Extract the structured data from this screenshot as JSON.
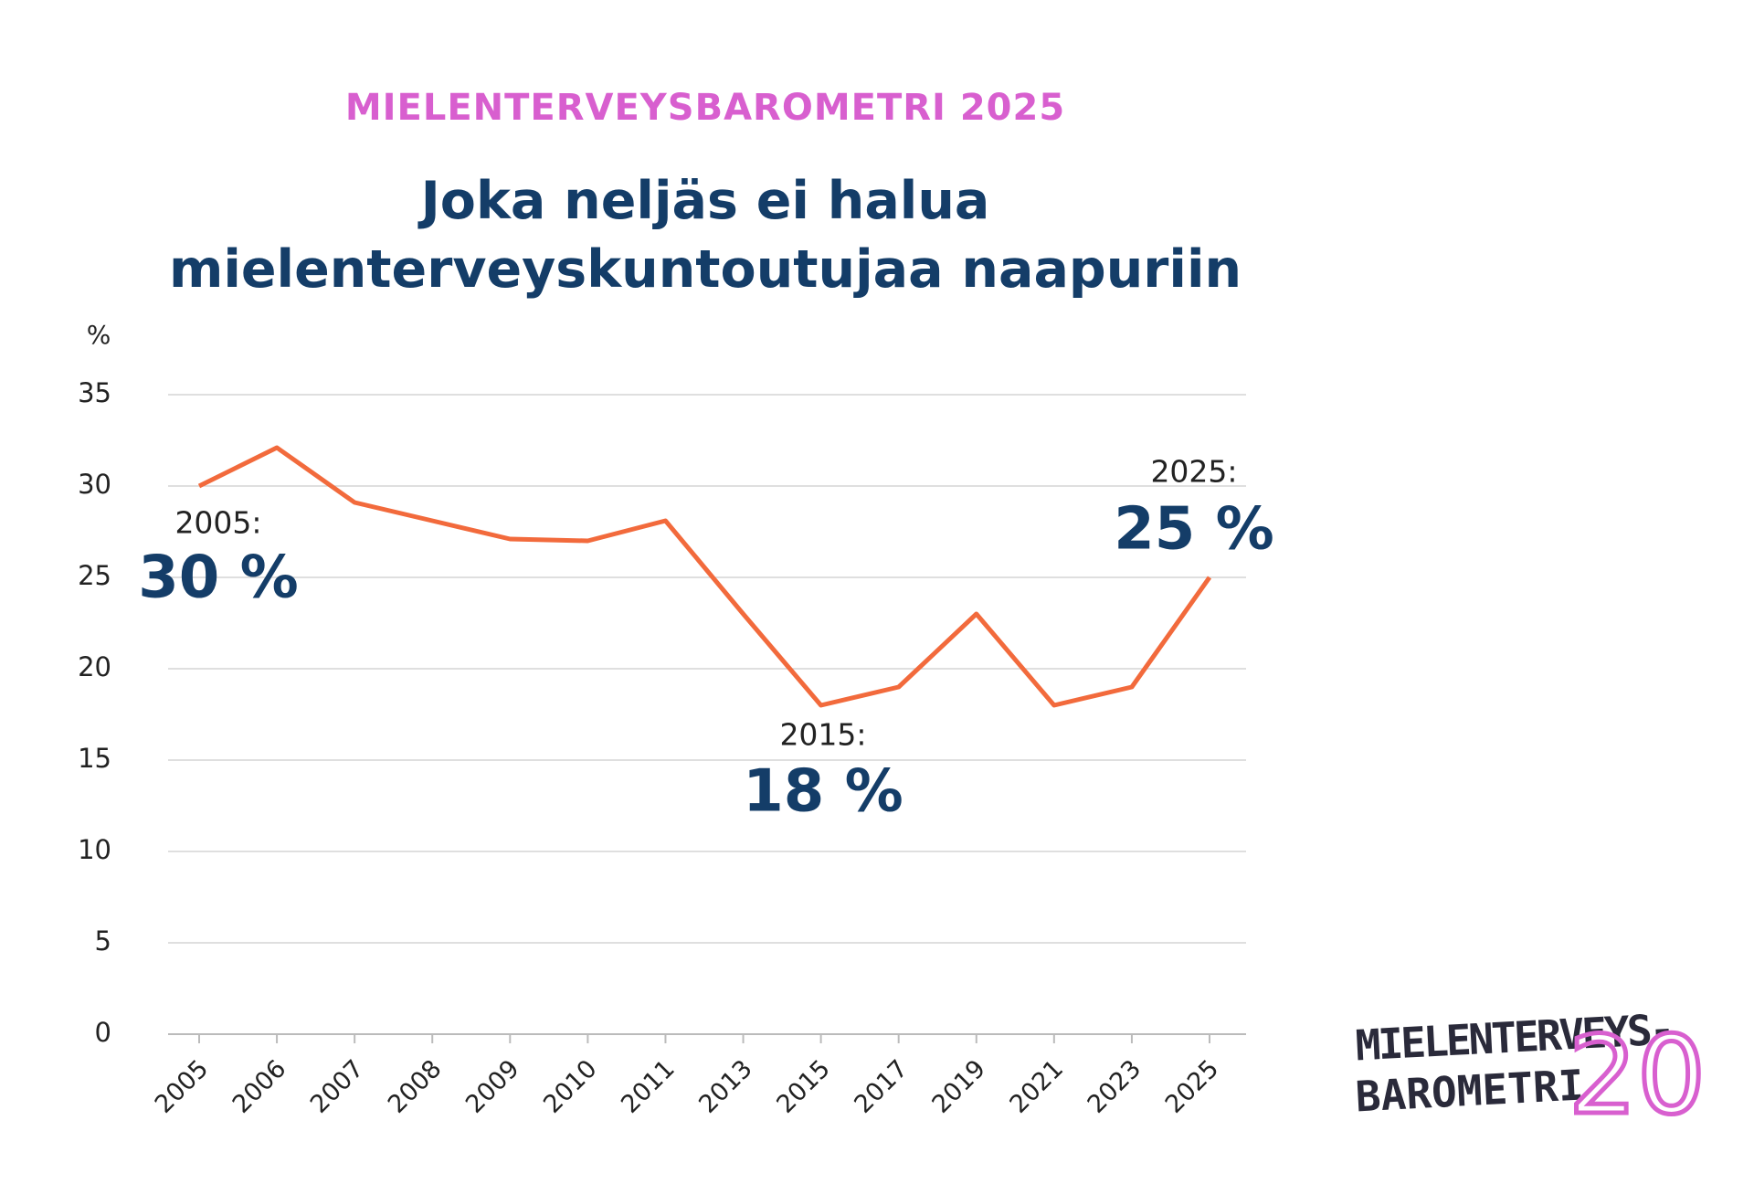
{
  "chart_data": {
    "type": "line",
    "supertitle": "MIELENTERVEYSBAROMETRI 2025",
    "title": "Joka neljäs ei halua mielenterveyskuntoutujaa naapuriin",
    "y_label": "%",
    "categories": [
      "2005",
      "2006",
      "2007",
      "2008",
      "2009",
      "2010",
      "2011",
      "2013",
      "2015",
      "2017",
      "2019",
      "2021",
      "2023",
      "2025"
    ],
    "values": [
      30,
      32.1,
      29.1,
      28.1,
      27.1,
      27,
      28.1,
      23,
      18,
      19,
      23,
      18,
      19,
      25
    ],
    "color": "#f26a3c",
    "ylim": [
      0,
      35
    ],
    "yticks": [
      0,
      5,
      10,
      15,
      20,
      25,
      30,
      35
    ],
    "grid": true,
    "annotations": [
      {
        "title": "2005:",
        "text": "30 %"
      },
      {
        "title": "2015:",
        "text": "18 %"
      },
      {
        "title": "2025:",
        "text": "25 %"
      }
    ]
  },
  "logo": {
    "lines": [
      "MIELENTERVEYS-",
      "BAROMETRI"
    ],
    "number": "20"
  }
}
